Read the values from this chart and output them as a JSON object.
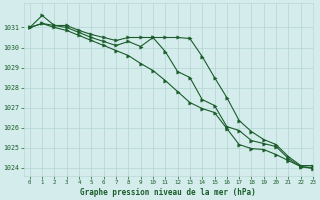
{
  "title": "Graphe pression niveau de la mer (hPa)",
  "background_color": "#d4edec",
  "grid_color": "#b8d8d6",
  "line_color": "#1a5c2a",
  "xlim": [
    -0.5,
    23
  ],
  "ylim": [
    1023.6,
    1032.2
  ],
  "yticks": [
    1024,
    1025,
    1026,
    1027,
    1028,
    1029,
    1030,
    1031
  ],
  "xticks": [
    0,
    1,
    2,
    3,
    4,
    5,
    6,
    7,
    8,
    9,
    10,
    11,
    12,
    13,
    14,
    15,
    16,
    17,
    18,
    19,
    20,
    21,
    22,
    23
  ],
  "line1_x": [
    0,
    1,
    2,
    3,
    4,
    5,
    6,
    7,
    8,
    9,
    10,
    11,
    12,
    13,
    14,
    15,
    16,
    17,
    18,
    19,
    20,
    21,
    22,
    23
  ],
  "line1_y": [
    1031.0,
    1031.6,
    1031.1,
    1031.1,
    1030.85,
    1030.65,
    1030.5,
    1030.35,
    1030.5,
    1030.5,
    1030.5,
    1030.5,
    1030.5,
    1030.45,
    1029.55,
    1028.5,
    1027.5,
    1026.35,
    1025.8,
    1025.4,
    1025.15,
    1024.55,
    1024.1,
    1024.1
  ],
  "line2_x": [
    0,
    1,
    2,
    3,
    4,
    5,
    6,
    7,
    8,
    9,
    10,
    11,
    12,
    13,
    14,
    15,
    16,
    17,
    18,
    19,
    20,
    21,
    22,
    23
  ],
  "line2_y": [
    1031.0,
    1031.2,
    1031.1,
    1031.0,
    1030.75,
    1030.5,
    1030.3,
    1030.1,
    1030.3,
    1030.05,
    1030.5,
    1029.8,
    1028.8,
    1028.5,
    1027.4,
    1027.1,
    1026.05,
    1025.85,
    1025.35,
    1025.2,
    1025.05,
    1024.45,
    1024.05,
    1024.0
  ],
  "line3_x": [
    0,
    1,
    2,
    3,
    4,
    5,
    6,
    7,
    8,
    9,
    10,
    11,
    12,
    13,
    14,
    15,
    16,
    17,
    18,
    19,
    20,
    21,
    22,
    23
  ],
  "line3_y": [
    1031.0,
    1031.2,
    1031.0,
    1030.85,
    1030.6,
    1030.35,
    1030.1,
    1029.85,
    1029.6,
    1029.2,
    1028.85,
    1028.35,
    1027.8,
    1027.25,
    1026.95,
    1026.75,
    1025.95,
    1025.15,
    1024.95,
    1024.9,
    1024.65,
    1024.35,
    1024.05,
    1023.95
  ]
}
